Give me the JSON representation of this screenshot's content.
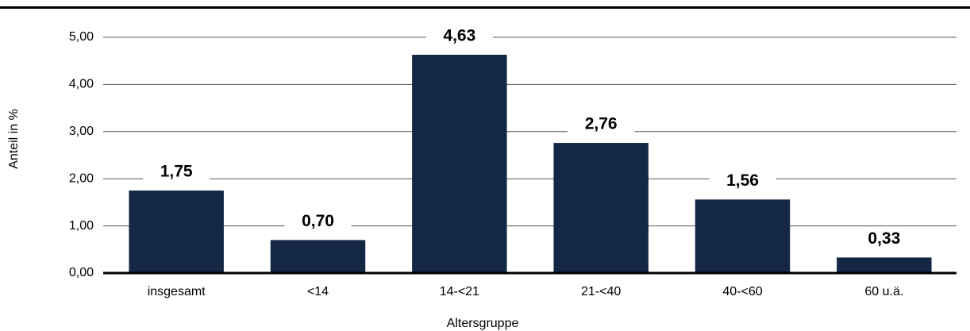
{
  "chart_data": {
    "type": "bar",
    "categories": [
      "insgesamt",
      "<14",
      "14-<21",
      "21-<40",
      "40-<60",
      "60 u.ä."
    ],
    "values": [
      1.75,
      0.7,
      4.63,
      2.76,
      1.56,
      0.33
    ],
    "value_labels": [
      "1,75",
      "0,70",
      "4,63",
      "2,76",
      "1,56",
      "0,33"
    ],
    "color": "#142846",
    "ylim": [
      0,
      5
    ],
    "yticks": [
      {
        "value": 0,
        "label": "0,00"
      },
      {
        "value": 1,
        "label": "1,00"
      },
      {
        "value": 2,
        "label": "2,00"
      },
      {
        "value": 3,
        "label": "3,00"
      },
      {
        "value": 4,
        "label": "4,00"
      },
      {
        "value": 5,
        "label": "5,00"
      }
    ],
    "ylabel": "Anteil in %",
    "xlabel": "Altersgruppe",
    "grid": true
  }
}
